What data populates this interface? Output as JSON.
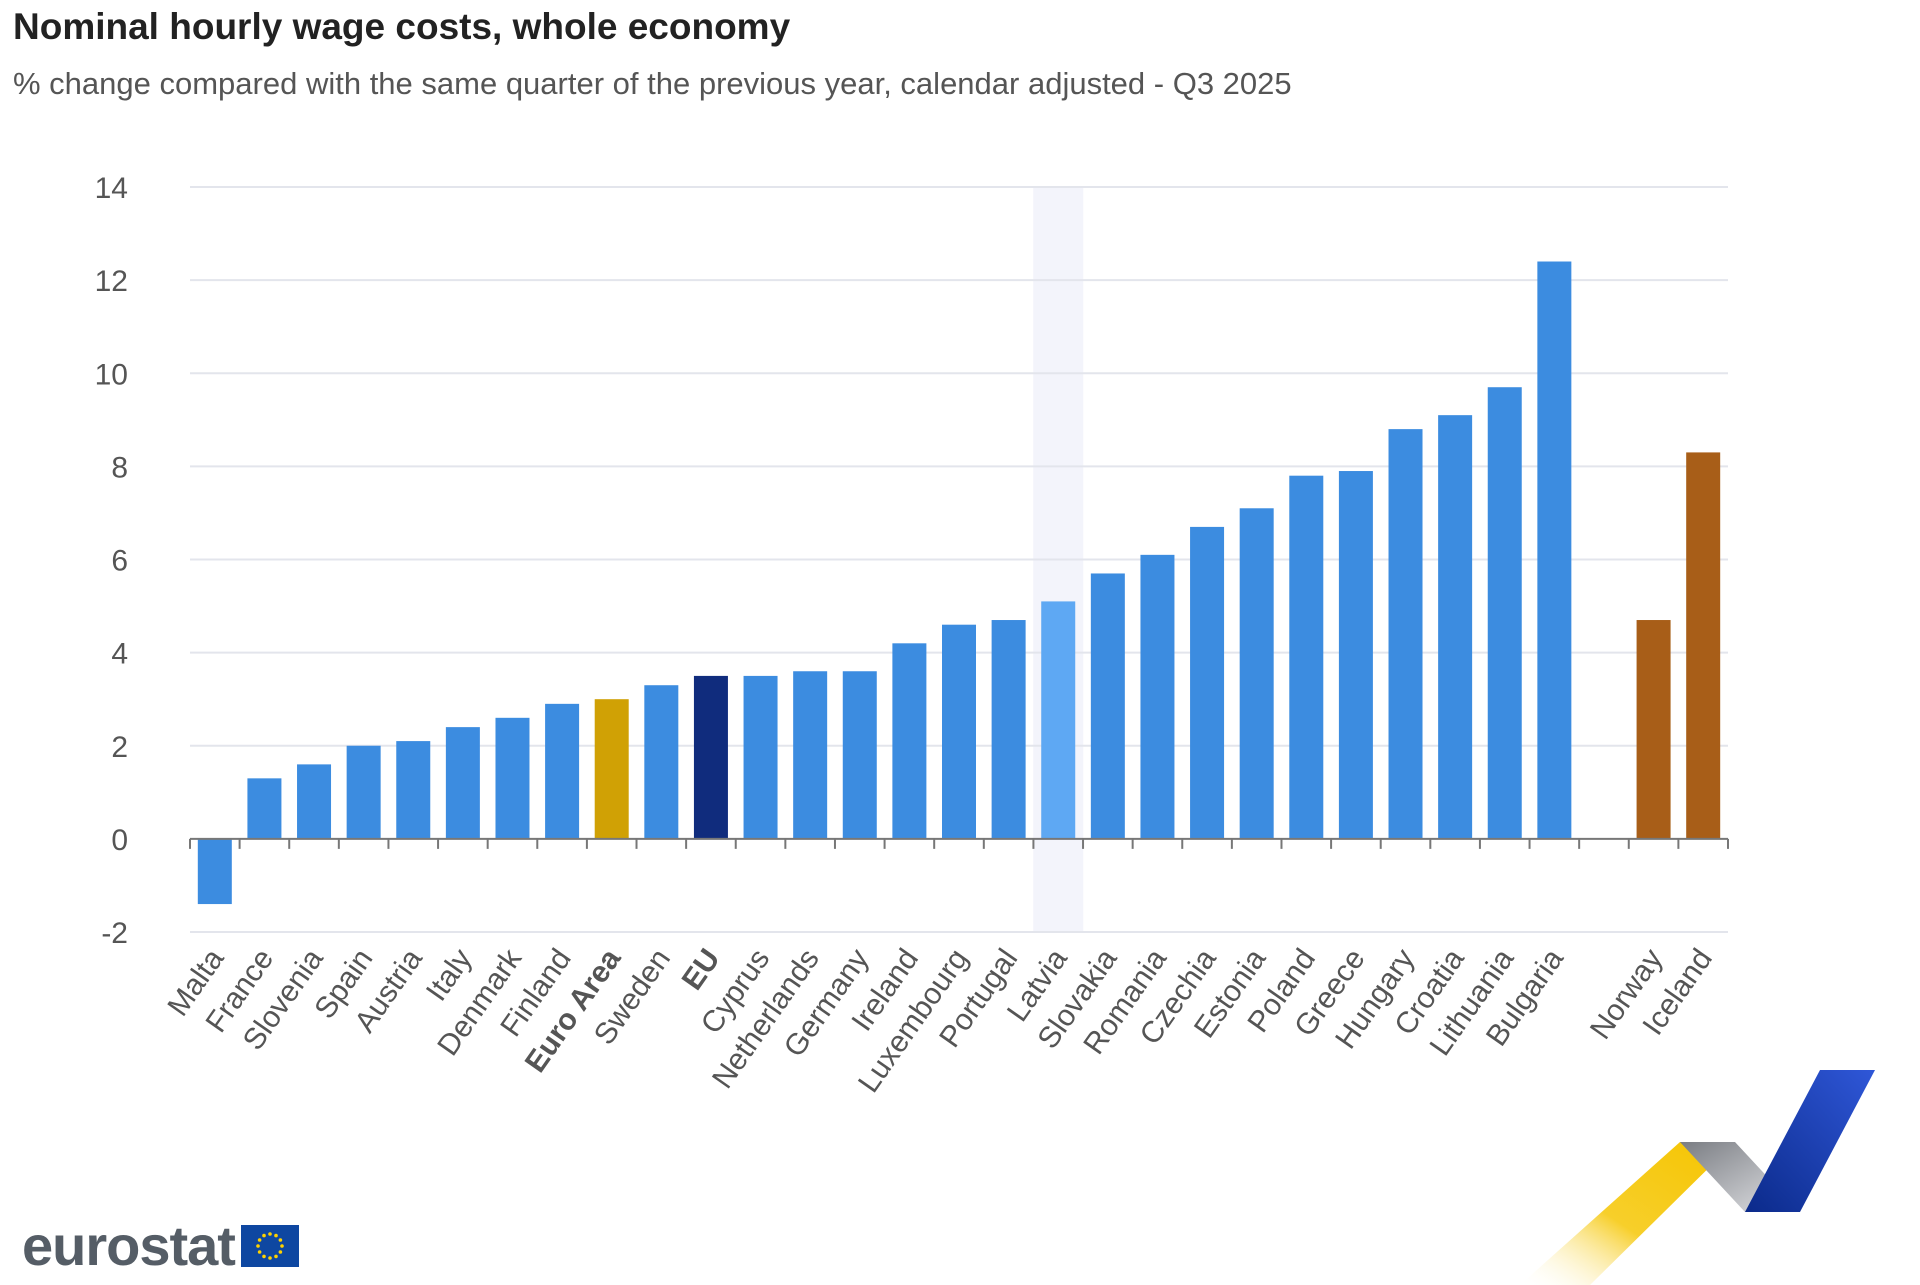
{
  "header": {
    "title": "Nominal hourly wage costs, whole economy",
    "subtitle": "% change compared with the same quarter of the previous year, calendar adjusted - Q3 2025"
  },
  "logo": {
    "text": "eurostat",
    "flag": "eu-flag-icon"
  },
  "colors": {
    "default": "#3c8ce0",
    "euro_area": "#d0a105",
    "eu": "#102c7d",
    "highlighted": "#5ea8f3",
    "efta": "#a85e18",
    "grid": "#e3e5ec",
    "axis": "#777777",
    "highlight_band": "#f3f4fb"
  },
  "chart_data": {
    "type": "bar",
    "title": "Nominal hourly wage costs, whole economy",
    "subtitle": "% change compared with the same quarter of the previous year, calendar adjusted - Q3 2025",
    "xlabel": "",
    "ylabel": "",
    "ylim": [
      -2,
      14
    ],
    "yticks": [
      "14",
      "12",
      "10",
      "8",
      "6",
      "4",
      "2",
      "0",
      "-2"
    ],
    "grid": true,
    "legend": "none",
    "highlighted_category": "Latvia",
    "categories": [
      "Malta",
      "France",
      "Slovenia",
      "Spain",
      "Austria",
      "Italy",
      "Denmark",
      "Finland",
      "Euro Area",
      "Sweden",
      "EU",
      "Cyprus",
      "Netherlands",
      "Germany",
      "Ireland",
      "Luxembourg",
      "Portugal",
      "Latvia",
      "Slovakia",
      "Romania",
      "Czechia",
      "Estonia",
      "Poland",
      "Greece",
      "Hungary",
      "Croatia",
      "Lithuania",
      "Bulgaria",
      "",
      "Norway",
      "Iceland"
    ],
    "values": [
      -1.4,
      1.3,
      1.6,
      2.0,
      2.1,
      2.4,
      2.6,
      2.9,
      3.0,
      3.3,
      3.5,
      3.5,
      3.6,
      3.6,
      4.2,
      4.6,
      4.7,
      5.1,
      5.7,
      6.1,
      6.7,
      7.1,
      7.8,
      7.9,
      8.8,
      9.1,
      9.7,
      12.4,
      null,
      4.7,
      8.3
    ],
    "bold_categories": [
      "Euro Area",
      "EU"
    ],
    "bar_color_keys": [
      "default",
      "default",
      "default",
      "default",
      "default",
      "default",
      "default",
      "default",
      "euro_area",
      "default",
      "eu",
      "default",
      "default",
      "default",
      "default",
      "default",
      "default",
      "highlighted",
      "default",
      "default",
      "default",
      "default",
      "default",
      "default",
      "default",
      "default",
      "default",
      "default",
      "",
      "efta",
      "efta"
    ]
  }
}
